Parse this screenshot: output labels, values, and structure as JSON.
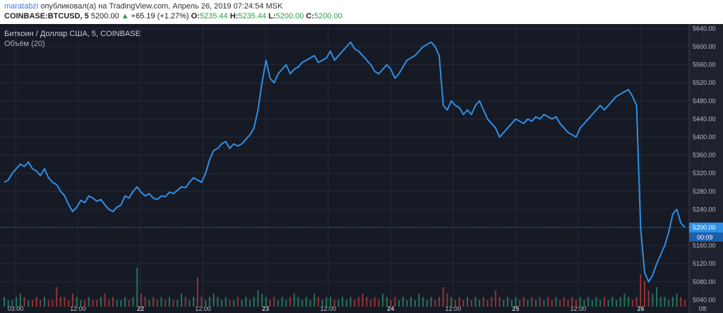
{
  "header": {
    "publisher": "maratabzi",
    "published_text": "опубликовал(а) на TradingView.com, Апрель 26, 2019 07:24:54 MSK",
    "symbol_line": "COINBASE:BTCUSD, 5",
    "last_price": "5200.00",
    "change": "+65.19 (+1.27%)",
    "open_label": "O:",
    "open_value": "5235.44",
    "high_label": "H:",
    "high_value": "5235.44",
    "low_label": "L:",
    "low_value": "5200.00",
    "close_label": "C:",
    "close_value": "5200.00"
  },
  "legend": {
    "series_title": "Биткоин / Доллар США, 5, COINBASE",
    "volume_label": "Объём (20)"
  },
  "colors": {
    "line": "#2f8fe4",
    "background": "#161a25",
    "grid": "#242a38",
    "price_marker": "#2f8fe4",
    "volume_up": "#2a8a6a",
    "volume_down": "#b43a3a"
  },
  "chart_data": {
    "type": "line",
    "title": "Биткоин / Доллар США, 5, COINBASE",
    "ylim": [
      5025,
      5650
    ],
    "y_ticks": [
      "5640.00",
      "5600.00",
      "5560.00",
      "5520.00",
      "5480.00",
      "5440.00",
      "5400.00",
      "5360.00",
      "5320.00",
      "5280.00",
      "5240.00",
      "5200.00",
      "5160.00",
      "5120.00",
      "5080.00",
      "5040.00"
    ],
    "x_ticks": [
      {
        "label": "03:00",
        "major": false
      },
      {
        "label": "12:00",
        "major": false
      },
      {
        "label": "22",
        "major": true
      },
      {
        "label": "12:00",
        "major": false
      },
      {
        "label": "23",
        "major": true
      },
      {
        "label": "12:00",
        "major": false
      },
      {
        "label": "24",
        "major": true
      },
      {
        "label": "12:00",
        "major": false
      },
      {
        "label": "25",
        "major": true
      },
      {
        "label": "12:00",
        "major": false
      },
      {
        "label": "26",
        "major": true
      },
      {
        "label": "08:",
        "major": false
      }
    ],
    "last_price_label": "5200.00",
    "countdown_label": "00:09",
    "last_price": 5200,
    "series": [
      {
        "values": [
          5300,
          5305,
          5320,
          5330,
          5340,
          5335,
          5345,
          5330,
          5325,
          5315,
          5330,
          5310,
          5300,
          5295,
          5280,
          5270,
          5250,
          5235,
          5245,
          5260,
          5255,
          5270,
          5265,
          5258,
          5262,
          5250,
          5240,
          5235,
          5245,
          5250,
          5270,
          5265,
          5280,
          5290,
          5278,
          5270,
          5275,
          5265,
          5262,
          5270,
          5268,
          5278,
          5275,
          5282,
          5290,
          5288,
          5300,
          5310,
          5305,
          5300,
          5320,
          5350,
          5370,
          5375,
          5385,
          5390,
          5375,
          5385,
          5380,
          5385,
          5395,
          5405,
          5420,
          5460,
          5520,
          5570,
          5530,
          5520,
          5540,
          5550,
          5560,
          5540,
          5550,
          5555,
          5565,
          5570,
          5575,
          5580,
          5565,
          5570,
          5575,
          5590,
          5570,
          5580,
          5590,
          5600,
          5610,
          5595,
          5590,
          5580,
          5570,
          5560,
          5545,
          5540,
          5550,
          5560,
          5550,
          5530,
          5540,
          5555,
          5570,
          5575,
          5580,
          5590,
          5600,
          5605,
          5610,
          5600,
          5580,
          5470,
          5460,
          5480,
          5470,
          5465,
          5450,
          5460,
          5450,
          5470,
          5480,
          5460,
          5440,
          5430,
          5420,
          5400,
          5410,
          5420,
          5430,
          5440,
          5435,
          5430,
          5440,
          5435,
          5445,
          5440,
          5450,
          5445,
          5440,
          5445,
          5430,
          5420,
          5410,
          5405,
          5400,
          5420,
          5430,
          5440,
          5450,
          5460,
          5470,
          5460,
          5470,
          5480,
          5490,
          5495,
          5500,
          5505,
          5490,
          5470,
          5200,
          5100,
          5080,
          5095,
          5120,
          5140,
          5160,
          5190,
          5230,
          5240,
          5210,
          5200
        ]
      }
    ],
    "volume": [
      3,
      2,
      2,
      3,
      4,
      3,
      2,
      2,
      3,
      2,
      3,
      2,
      2,
      6,
      3,
      3,
      2,
      4,
      3,
      2,
      2,
      3,
      2,
      2,
      3,
      4,
      2,
      3,
      2,
      2,
      3,
      2,
      3,
      12,
      4,
      3,
      2,
      3,
      2,
      3,
      2,
      3,
      2,
      2,
      4,
      3,
      2,
      3,
      9,
      3,
      2,
      3,
      4,
      3,
      2,
      3,
      2,
      2,
      3,
      2,
      3,
      2,
      3,
      5,
      4,
      3,
      2,
      3,
      2,
      3,
      2,
      3,
      4,
      3,
      2,
      3,
      2,
      4,
      3,
      2,
      3,
      3,
      2,
      2,
      3,
      2,
      3,
      2,
      3,
      4,
      3,
      2,
      3,
      2,
      4,
      3,
      2,
      3,
      2,
      3,
      2,
      3,
      2,
      4,
      3,
      2,
      3,
      2,
      3,
      6,
      4,
      3,
      2,
      3,
      2,
      3,
      2,
      3,
      2,
      3,
      2,
      3,
      5,
      3,
      2,
      3,
      2,
      3,
      2,
      3,
      2,
      3,
      2,
      3,
      2,
      3,
      2,
      3,
      2,
      3,
      2,
      3,
      2,
      3,
      2,
      3,
      2,
      3,
      2,
      3,
      2,
      3,
      2,
      3,
      4,
      3,
      2,
      3,
      10,
      8,
      5,
      4,
      6,
      3,
      3,
      2,
      3,
      4,
      3,
      2
    ]
  }
}
